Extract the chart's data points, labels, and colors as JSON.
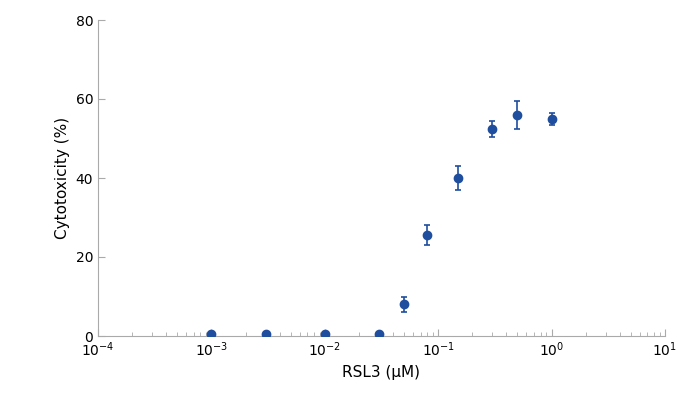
{
  "x": [
    0.001,
    0.003,
    0.01,
    0.03,
    0.05,
    0.08,
    0.15,
    0.3,
    0.5,
    1.0
  ],
  "y": [
    0.5,
    0.5,
    0.5,
    0.5,
    8.0,
    25.5,
    40.0,
    52.5,
    56.0,
    55.0
  ],
  "yerr": [
    0.3,
    0.3,
    0.3,
    0.3,
    2.0,
    2.5,
    3.0,
    2.0,
    3.5,
    1.5
  ],
  "color": "#1f4e9e",
  "xlabel": "RSL3 (μM)",
  "ylabel": "Cytotoxicity (%)",
  "xlim": [
    0.0001,
    10
  ],
  "ylim": [
    0,
    80
  ],
  "yticks": [
    0,
    20,
    40,
    60,
    80
  ],
  "marker": "o",
  "markersize": 6,
  "linewidth": 1.8,
  "spine_color": "#aaaaaa",
  "tick_label_fontsize": 10,
  "axis_label_fontsize": 11
}
